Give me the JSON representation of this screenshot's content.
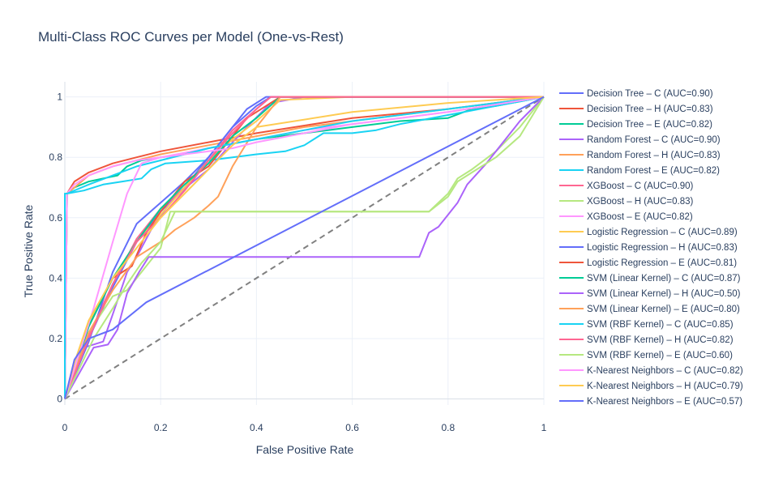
{
  "chart_data": {
    "type": "line",
    "title": "Multi-Class ROC Curves per Model (One-vs-Rest)",
    "xlabel": "False Positive Rate",
    "ylabel": "True Positive Rate",
    "xlim": [
      0,
      1
    ],
    "ylim": [
      -0.02,
      1.05
    ],
    "x_ticks": [
      "0",
      "0.2",
      "0.4",
      "0.6",
      "0.8",
      "1"
    ],
    "y_ticks": [
      "0",
      "0.2",
      "0.4",
      "0.6",
      "0.8",
      "1"
    ],
    "grid": true,
    "legend_position": "right",
    "diagonal": {
      "color": "#808080",
      "dash": "dash",
      "x": [
        0,
        1
      ],
      "y": [
        0,
        1
      ]
    },
    "series": [
      {
        "name": "Decision Tree – C (AUC=0.90)",
        "color": "#636efa",
        "x": [
          0,
          0.05,
          0.1,
          0.15,
          0.2,
          0.25,
          0.3,
          0.35,
          0.4,
          0.43,
          0.6,
          0.8,
          1
        ],
        "y": [
          0,
          0.2,
          0.37,
          0.52,
          0.62,
          0.7,
          0.8,
          0.9,
          0.97,
          1,
          1,
          1,
          1
        ]
      },
      {
        "name": "Decision Tree – H (AUC=0.83)",
        "color": "#ef553b",
        "x": [
          0,
          0.0045,
          0.02,
          0.05,
          0.1,
          0.15,
          0.2,
          0.3,
          0.4,
          0.6,
          0.8,
          1
        ],
        "y": [
          0,
          0.68,
          0.72,
          0.75,
          0.78,
          0.8,
          0.82,
          0.85,
          0.88,
          0.93,
          0.96,
          1
        ]
      },
      {
        "name": "Decision Tree – E (AUC=0.82)",
        "color": "#00cc96",
        "x": [
          0,
          0.0045,
          0.02,
          0.05,
          0.08,
          0.11,
          0.13,
          0.16,
          0.2,
          0.25,
          0.3,
          0.4,
          0.5,
          0.6,
          0.7,
          0.8,
          0.85,
          0.9,
          1
        ],
        "y": [
          0,
          0.68,
          0.7,
          0.72,
          0.73,
          0.74,
          0.77,
          0.79,
          0.8,
          0.81,
          0.83,
          0.86,
          0.88,
          0.9,
          0.92,
          0.93,
          0.96,
          0.97,
          1
        ]
      },
      {
        "name": "Random Forest – C (AUC=0.90)",
        "color": "#ab63fa",
        "x": [
          0,
          0.04,
          0.08,
          0.1,
          0.13,
          0.15,
          0.18,
          0.22,
          0.26,
          0.3,
          0.35,
          0.38,
          0.43,
          0.5,
          0.6,
          0.8,
          1
        ],
        "y": [
          0,
          0.17,
          0.19,
          0.28,
          0.42,
          0.47,
          0.56,
          0.65,
          0.71,
          0.76,
          0.85,
          0.9,
          0.98,
          1,
          1,
          1,
          1
        ]
      },
      {
        "name": "Random Forest – H (AUC=0.83)",
        "color": "#ffa15a",
        "x": [
          0,
          0.0045,
          0.02,
          0.05,
          0.1,
          0.15,
          0.2,
          0.3,
          0.4,
          0.5,
          0.6,
          0.8,
          1
        ],
        "y": [
          0,
          0.68,
          0.7,
          0.74,
          0.77,
          0.79,
          0.81,
          0.84,
          0.87,
          0.9,
          0.92,
          0.96,
          1
        ]
      },
      {
        "name": "Random Forest – E (AUC=0.82)",
        "color": "#19d3f3",
        "x": [
          0,
          0,
          0.0045,
          0.04,
          0.08,
          0.12,
          0.16,
          0.18,
          0.21,
          0.3,
          0.4,
          0.46,
          0.5,
          0.54,
          0.6,
          0.65,
          0.7,
          0.8,
          0.9,
          1
        ],
        "y": [
          0,
          0.68,
          0.68,
          0.69,
          0.71,
          0.72,
          0.73,
          0.76,
          0.78,
          0.79,
          0.81,
          0.82,
          0.84,
          0.88,
          0.88,
          0.89,
          0.91,
          0.94,
          0.97,
          1
        ]
      },
      {
        "name": "XGBoost – C (AUC=0.90)",
        "color": "#ff6692",
        "x": [
          0,
          0.05,
          0.1,
          0.15,
          0.2,
          0.25,
          0.3,
          0.35,
          0.4,
          0.43,
          0.6,
          0.8,
          1
        ],
        "y": [
          0,
          0.21,
          0.38,
          0.53,
          0.63,
          0.7,
          0.79,
          0.89,
          0.96,
          1,
          1,
          1,
          1
        ]
      },
      {
        "name": "XGBoost – H (AUC=0.83)",
        "color": "#b6e880",
        "x": [
          0,
          0.02,
          0.05,
          0.1,
          0.13,
          0.16,
          0.2,
          0.22,
          0.3,
          0.4,
          0.5,
          0.6,
          0.7,
          0.76,
          0.8,
          0.82,
          0.85,
          0.9,
          0.95,
          1
        ],
        "y": [
          0,
          0.1,
          0.22,
          0.34,
          0.36,
          0.42,
          0.5,
          0.62,
          0.62,
          0.62,
          0.62,
          0.62,
          0.62,
          0.62,
          0.68,
          0.73,
          0.76,
          0.82,
          0.9,
          1
        ]
      },
      {
        "name": "XGBoost – E (AUC=0.82)",
        "color": "#ff97ff",
        "x": [
          0,
          0.0045,
          0.02,
          0.05,
          0.1,
          0.15,
          0.2,
          0.3,
          0.4,
          0.5,
          0.6,
          0.8,
          1
        ],
        "y": [
          0,
          0.68,
          0.71,
          0.74,
          0.77,
          0.79,
          0.8,
          0.83,
          0.86,
          0.89,
          0.91,
          0.95,
          1
        ]
      },
      {
        "name": "Logistic Regression – C (AUC=0.89)",
        "color": "#fecb52",
        "x": [
          0,
          0.05,
          0.1,
          0.15,
          0.2,
          0.25,
          0.3,
          0.35,
          0.4,
          0.45,
          0.6,
          0.8,
          1
        ],
        "y": [
          0,
          0.25,
          0.4,
          0.52,
          0.61,
          0.7,
          0.79,
          0.86,
          0.92,
          0.99,
          1,
          1,
          1
        ]
      },
      {
        "name": "Logistic Regression – H (AUC=0.83)",
        "color": "#636efa",
        "x": [
          0,
          0.05,
          0.1,
          0.15,
          0.2,
          0.25,
          0.3,
          0.35,
          0.38,
          0.42,
          0.6,
          0.8,
          1
        ],
        "y": [
          0,
          0.19,
          0.42,
          0.58,
          0.65,
          0.72,
          0.8,
          0.9,
          0.96,
          1,
          1,
          1,
          1
        ]
      },
      {
        "name": "Logistic Regression – E (AUC=0.81)",
        "color": "#ef553b",
        "x": [
          0,
          0.05,
          0.1,
          0.14,
          0.17,
          0.2,
          0.25,
          0.3,
          0.35,
          0.38,
          0.4,
          0.45,
          0.6,
          0.8,
          1
        ],
        "y": [
          0,
          0.24,
          0.4,
          0.44,
          0.55,
          0.62,
          0.72,
          0.77,
          0.87,
          0.93,
          0.95,
          1,
          1,
          1,
          1
        ]
      },
      {
        "name": "SVM (Linear Kernel) – C (AUC=0.87)",
        "color": "#00cc96",
        "x": [
          0,
          0.05,
          0.1,
          0.15,
          0.2,
          0.25,
          0.3,
          0.35,
          0.4,
          0.45,
          0.6,
          0.8,
          1
        ],
        "y": [
          0,
          0.24,
          0.4,
          0.52,
          0.63,
          0.71,
          0.78,
          0.87,
          0.93,
          1,
          1,
          1,
          1
        ]
      },
      {
        "name": "SVM (Linear Kernel) – H (AUC=0.50)",
        "color": "#ab63fa",
        "x": [
          0,
          0.06,
          0.09,
          0.11,
          0.13,
          0.155,
          0.175,
          0.3,
          0.5,
          0.7,
          0.74,
          0.76,
          0.78,
          0.82,
          0.84,
          0.88,
          0.9,
          0.95,
          1
        ],
        "y": [
          0,
          0.17,
          0.18,
          0.23,
          0.35,
          0.42,
          0.47,
          0.47,
          0.47,
          0.47,
          0.47,
          0.55,
          0.57,
          0.65,
          0.71,
          0.78,
          0.82,
          0.92,
          1
        ]
      },
      {
        "name": "SVM (Linear Kernel) – E (AUC=0.80)",
        "color": "#ffa15a",
        "x": [
          0,
          0.05,
          0.1,
          0.15,
          0.2,
          0.23,
          0.25,
          0.27,
          0.3,
          0.32,
          0.35,
          0.4,
          0.45,
          0.6,
          0.8,
          1
        ],
        "y": [
          0,
          0.22,
          0.36,
          0.47,
          0.52,
          0.56,
          0.58,
          0.6,
          0.64,
          0.67,
          0.77,
          0.9,
          1,
          1,
          1,
          1
        ]
      },
      {
        "name": "SVM (RBF Kernel) – C (AUC=0.85)",
        "color": "#19d3f3",
        "x": [
          0,
          0,
          0.0045,
          0.05,
          0.1,
          0.15,
          0.2,
          0.3,
          0.4,
          0.5,
          0.6,
          0.8,
          1
        ],
        "y": [
          0,
          0.68,
          0.68,
          0.71,
          0.74,
          0.77,
          0.79,
          0.83,
          0.86,
          0.89,
          0.92,
          0.96,
          1
        ]
      },
      {
        "name": "SVM (RBF Kernel) – H (AUC=0.82)",
        "color": "#ff6692",
        "x": [
          0,
          0.05,
          0.1,
          0.15,
          0.2,
          0.25,
          0.3,
          0.35,
          0.4,
          0.43,
          0.6,
          0.8,
          1
        ],
        "y": [
          0,
          0.2,
          0.38,
          0.52,
          0.6,
          0.69,
          0.79,
          0.88,
          0.96,
          1,
          1,
          1,
          1
        ]
      },
      {
        "name": "SVM (RBF Kernel) – E (AUC=0.60)",
        "color": "#b6e880",
        "x": [
          0,
          0.03,
          0.06,
          0.1,
          0.13,
          0.16,
          0.2,
          0.23,
          0.3,
          0.5,
          0.7,
          0.76,
          0.8,
          0.82,
          0.85,
          0.9,
          0.95,
          1
        ],
        "y": [
          0,
          0.1,
          0.2,
          0.3,
          0.38,
          0.45,
          0.52,
          0.62,
          0.62,
          0.62,
          0.62,
          0.62,
          0.67,
          0.72,
          0.75,
          0.8,
          0.87,
          1
        ]
      },
      {
        "name": "K-Nearest Neighbors – C (AUC=0.82)",
        "color": "#ff97ff",
        "x": [
          0,
          0.03,
          0.06,
          0.1,
          0.13,
          0.16,
          0.2,
          0.25,
          0.3,
          0.35,
          0.4,
          0.5,
          0.6,
          0.8,
          1
        ],
        "y": [
          0,
          0.15,
          0.3,
          0.52,
          0.68,
          0.78,
          0.8,
          0.81,
          0.82,
          0.83,
          0.85,
          0.88,
          0.91,
          0.95,
          1
        ]
      },
      {
        "name": "K-Nearest Neighbors – H (AUC=0.79)",
        "color": "#fecb52",
        "x": [
          0,
          0.02,
          0.05,
          0.1,
          0.15,
          0.2,
          0.25,
          0.3,
          0.35,
          0.4,
          0.6,
          0.8,
          1
        ],
        "y": [
          0,
          0.12,
          0.26,
          0.4,
          0.5,
          0.6,
          0.68,
          0.76,
          0.84,
          0.9,
          0.95,
          0.98,
          1
        ]
      },
      {
        "name": "K-Nearest Neighbors – E (AUC=0.57)",
        "color": "#636efa",
        "x": [
          0,
          0.02,
          0.05,
          0.1,
          0.17,
          1
        ],
        "y": [
          0,
          0.13,
          0.2,
          0.23,
          0.32,
          1
        ]
      }
    ]
  }
}
